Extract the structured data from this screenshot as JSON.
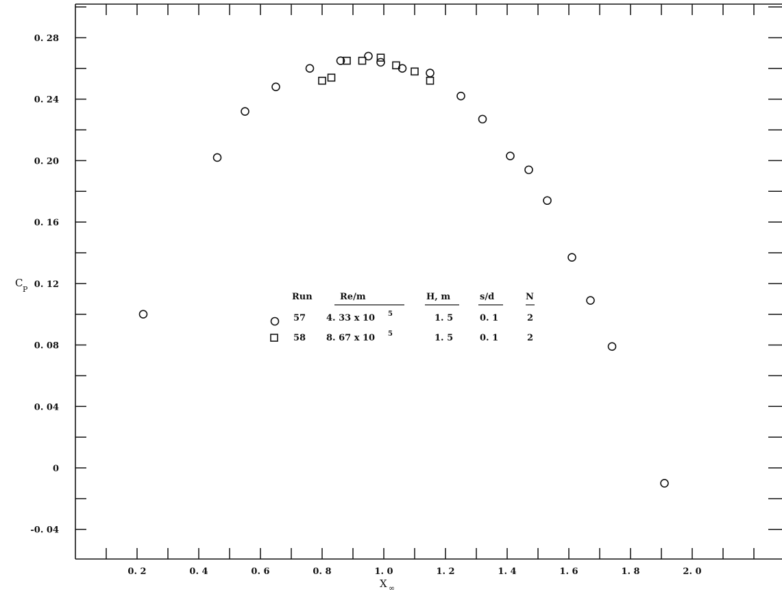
{
  "chart_data": {
    "type": "scatter",
    "xlabel": "X",
    "xlabel_sub": "∞",
    "ylabel": "C",
    "ylabel_sub": "P",
    "xlim": [
      0.0,
      2.2
    ],
    "ylim": [
      -0.06,
      0.3
    ],
    "x_ticks": [
      {
        "value": 0.2,
        "label": "0. 2"
      },
      {
        "value": 0.4,
        "label": "0. 4"
      },
      {
        "value": 0.6,
        "label": "0. 6"
      },
      {
        "value": 0.8,
        "label": "0. 8"
      },
      {
        "value": 1.0,
        "label": "1. 0"
      },
      {
        "value": 1.2,
        "label": "1. 2"
      },
      {
        "value": 1.4,
        "label": "1. 4"
      },
      {
        "value": 1.6,
        "label": "1. 6"
      },
      {
        "value": 1.8,
        "label": "1. 8"
      },
      {
        "value": 2.0,
        "label": "2. 0"
      }
    ],
    "y_ticks": [
      {
        "value": 0.28,
        "label": "0. 28"
      },
      {
        "value": 0.24,
        "label": "0. 24"
      },
      {
        "value": 0.2,
        "label": "0. 20"
      },
      {
        "value": 0.16,
        "label": "0. 16"
      },
      {
        "value": 0.12,
        "label": "0. 12"
      },
      {
        "value": 0.08,
        "label": "0. 08"
      },
      {
        "value": 0.04,
        "label": "0. 04"
      },
      {
        "value": 0.0,
        "label": "0"
      },
      {
        "value": -0.04,
        "label": "-0. 04"
      }
    ],
    "minor_x_step": 0.1,
    "minor_y_step": 0.02,
    "grid": false,
    "legend_position": "center",
    "legend": {
      "headers": [
        "Run",
        "Re/m",
        "H, m",
        "s/d",
        "N"
      ],
      "rows": [
        {
          "marker": "circle",
          "run": "57",
          "re_base": "4. 33 x 10",
          "re_exp": "5",
          "h": "1. 5",
          "sd": "0. 1",
          "n": "2"
        },
        {
          "marker": "square",
          "run": "58",
          "re_base": "8. 67 x 10",
          "re_exp": "5",
          "h": "1. 5",
          "sd": "0. 1",
          "n": "2"
        }
      ]
    },
    "series": [
      {
        "marker": "circle",
        "run": "57",
        "points": [
          [
            0.22,
            0.1
          ],
          [
            0.46,
            0.202
          ],
          [
            0.55,
            0.232
          ],
          [
            0.65,
            0.248
          ],
          [
            0.76,
            0.26
          ],
          [
            0.86,
            0.265
          ],
          [
            0.95,
            0.268
          ],
          [
            0.99,
            0.264
          ],
          [
            1.06,
            0.26
          ],
          [
            1.15,
            0.257
          ],
          [
            1.25,
            0.242
          ],
          [
            1.32,
            0.227
          ],
          [
            1.41,
            0.203
          ],
          [
            1.47,
            0.194
          ],
          [
            1.53,
            0.174
          ],
          [
            1.61,
            0.137
          ],
          [
            1.67,
            0.109
          ],
          [
            1.74,
            0.079
          ],
          [
            1.91,
            -0.01
          ]
        ]
      },
      {
        "marker": "square",
        "run": "58",
        "points": [
          [
            0.8,
            0.252
          ],
          [
            0.83,
            0.254
          ],
          [
            0.88,
            0.265
          ],
          [
            0.93,
            0.265
          ],
          [
            0.99,
            0.267
          ],
          [
            1.04,
            0.262
          ],
          [
            1.1,
            0.258
          ],
          [
            1.15,
            0.252
          ]
        ]
      }
    ]
  }
}
